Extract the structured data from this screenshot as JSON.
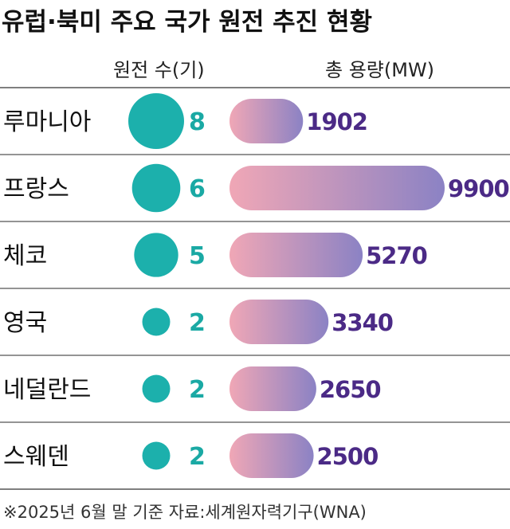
{
  "title": "유럽·북미 주요 국가 원전 추진 현황",
  "columns": {
    "count_header": "원전 수(기)",
    "capacity_header": "총 용량(MW)"
  },
  "footer": "※2025년 6월 말 기준  자료:세계원자력기구(WNA)",
  "colors": {
    "teal": "#1cb0ac",
    "bar_start": "#f0a7b6",
    "bar_end": "#8b82c4",
    "value_text": "#4b2a86",
    "line": "#555555"
  },
  "chart_data": {
    "type": "bar",
    "categories": [
      "루마니아",
      "프랑스",
      "체코",
      "영국",
      "네덜란드",
      "스웨덴"
    ],
    "series": [
      {
        "name": "원전 수(기)",
        "values": [
          8,
          6,
          5,
          2,
          2,
          2
        ]
      },
      {
        "name": "총 용량(MW)",
        "values": [
          1902,
          9900,
          5270,
          3340,
          2650,
          2500
        ]
      }
    ]
  }
}
